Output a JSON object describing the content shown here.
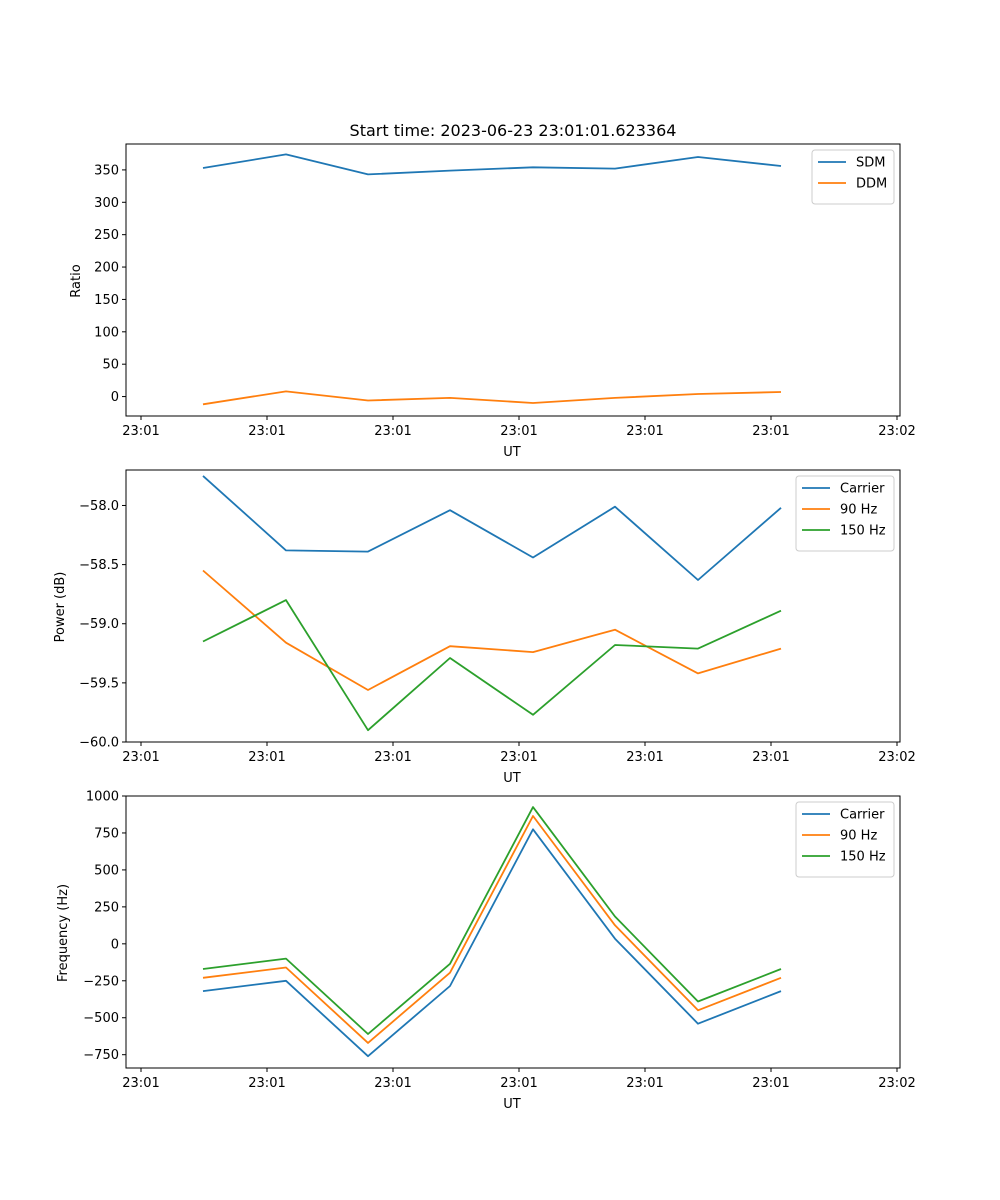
{
  "chart_data": [
    {
      "type": "line",
      "title": "Start time: 2023-06-23 23:01:01.623364",
      "xlabel": "UT",
      "ylabel": "Ratio",
      "x_tick_labels": [
        "23:01",
        "23:01",
        "23:01",
        "23:01",
        "23:01",
        "23:01",
        "23:02"
      ],
      "y_ticks": [
        0,
        50,
        100,
        150,
        200,
        250,
        300,
        350
      ],
      "y_tick_labels": [
        "0",
        "50",
        "100",
        "150",
        "200",
        "250",
        "300",
        "350"
      ],
      "ylim": [
        -30,
        390
      ],
      "legend_position": "top-right",
      "series": [
        {
          "name": "SDM",
          "color": "#1f77b4",
          "values": [
            353,
            374,
            343,
            349,
            354,
            352,
            370,
            356
          ]
        },
        {
          "name": "DDM",
          "color": "#ff7f0e",
          "values": [
            -12,
            8,
            -6,
            -2,
            -10,
            -2,
            4,
            7
          ]
        }
      ]
    },
    {
      "type": "line",
      "title": "",
      "xlabel": "UT",
      "ylabel": "Power (dB)",
      "x_tick_labels": [
        "23:01",
        "23:01",
        "23:01",
        "23:01",
        "23:01",
        "23:01",
        "23:02"
      ],
      "y_ticks": [
        -60.0,
        -59.5,
        -59.0,
        -58.5,
        -58.0
      ],
      "y_tick_labels": [
        "−60.0",
        "−59.5",
        "−59.0",
        "−58.5",
        "−58.0"
      ],
      "ylim": [
        -60.0,
        -57.7
      ],
      "legend_position": "top-right",
      "series": [
        {
          "name": "Carrier",
          "color": "#1f77b4",
          "values": [
            -57.75,
            -58.38,
            -58.39,
            -58.04,
            -58.44,
            -58.01,
            -58.63,
            -58.02
          ]
        },
        {
          "name": "90 Hz",
          "color": "#ff7f0e",
          "values": [
            -58.55,
            -59.16,
            -59.56,
            -59.19,
            -59.24,
            -59.05,
            -59.42,
            -59.21
          ]
        },
        {
          "name": "150 Hz",
          "color": "#2ca02c",
          "values": [
            -59.15,
            -58.8,
            -59.9,
            -59.29,
            -59.77,
            -59.18,
            -59.21,
            -58.89
          ]
        }
      ]
    },
    {
      "type": "line",
      "title": "",
      "xlabel": "UT",
      "ylabel": "Frequency (Hz)",
      "x_tick_labels": [
        "23:01",
        "23:01",
        "23:01",
        "23:01",
        "23:01",
        "23:01",
        "23:02"
      ],
      "y_ticks": [
        -750,
        -500,
        -250,
        0,
        250,
        500,
        750,
        1000
      ],
      "y_tick_labels": [
        "−750",
        "−500",
        "−250",
        "0",
        "250",
        "500",
        "750",
        "1000"
      ],
      "ylim": [
        -840,
        1000
      ],
      "legend_position": "top-right",
      "series": [
        {
          "name": "Carrier",
          "color": "#1f77b4",
          "values": [
            -320,
            -250,
            -760,
            -285,
            775,
            35,
            -540,
            -320
          ]
        },
        {
          "name": "90 Hz",
          "color": "#ff7f0e",
          "values": [
            -230,
            -160,
            -670,
            -195,
            865,
            125,
            -450,
            -230
          ]
        },
        {
          "name": "150 Hz",
          "color": "#2ca02c",
          "values": [
            -170,
            -100,
            -610,
            -135,
            925,
            185,
            -390,
            -170
          ]
        }
      ]
    }
  ]
}
